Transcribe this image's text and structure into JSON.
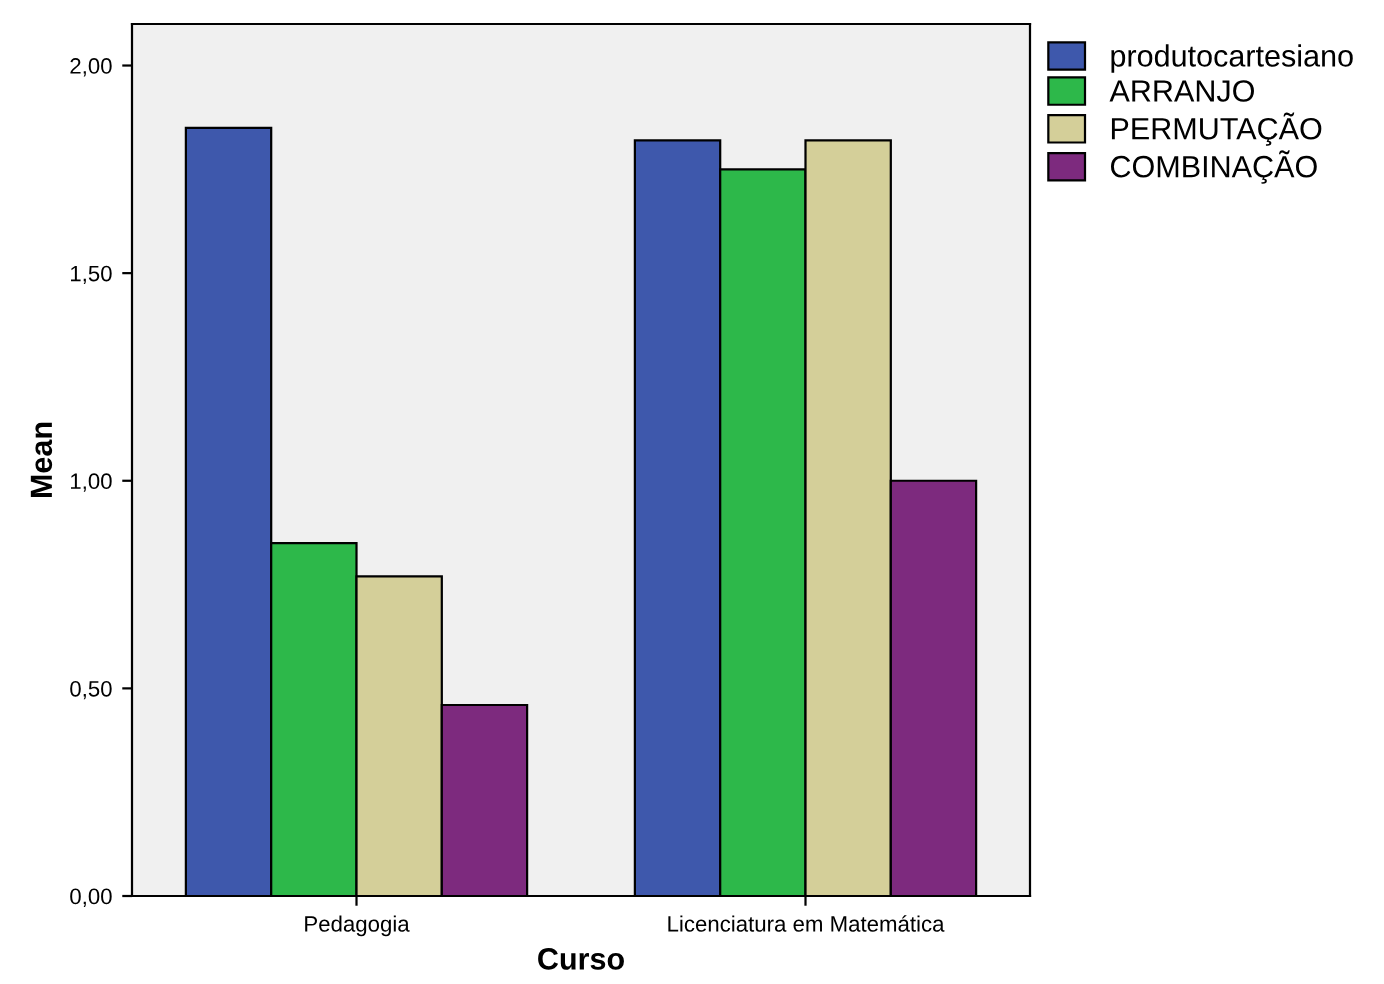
{
  "chart_data": {
    "type": "bar",
    "xlabel": "Curso",
    "ylabel": "Mean",
    "categories": [
      "Pedagogia",
      "Licenciatura em Matemática"
    ],
    "series": [
      {
        "name": "produtocartesiano",
        "color": "#3e58ac",
        "values": [
          1.85,
          1.82
        ]
      },
      {
        "name": "ARRANJO",
        "color": "#2db84a",
        "values": [
          0.85,
          1.75
        ]
      },
      {
        "name": "PERMUTAÇÃO",
        "color": "#d4cf99",
        "values": [
          0.77,
          1.82
        ]
      },
      {
        "name": "COMBINAÇÃO",
        "color": "#7d2a7e",
        "values": [
          0.46,
          1.0
        ]
      }
    ],
    "ylim": [
      0,
      2.1
    ],
    "yticks": [
      {
        "value": 0,
        "label": "0,00"
      },
      {
        "value": 0.5,
        "label": "0,50"
      },
      {
        "value": 1,
        "label": "1,00"
      },
      {
        "value": 1.5,
        "label": "1,50"
      },
      {
        "value": 2,
        "label": "2,00"
      }
    ],
    "grid": false,
    "legend": "top right"
  }
}
